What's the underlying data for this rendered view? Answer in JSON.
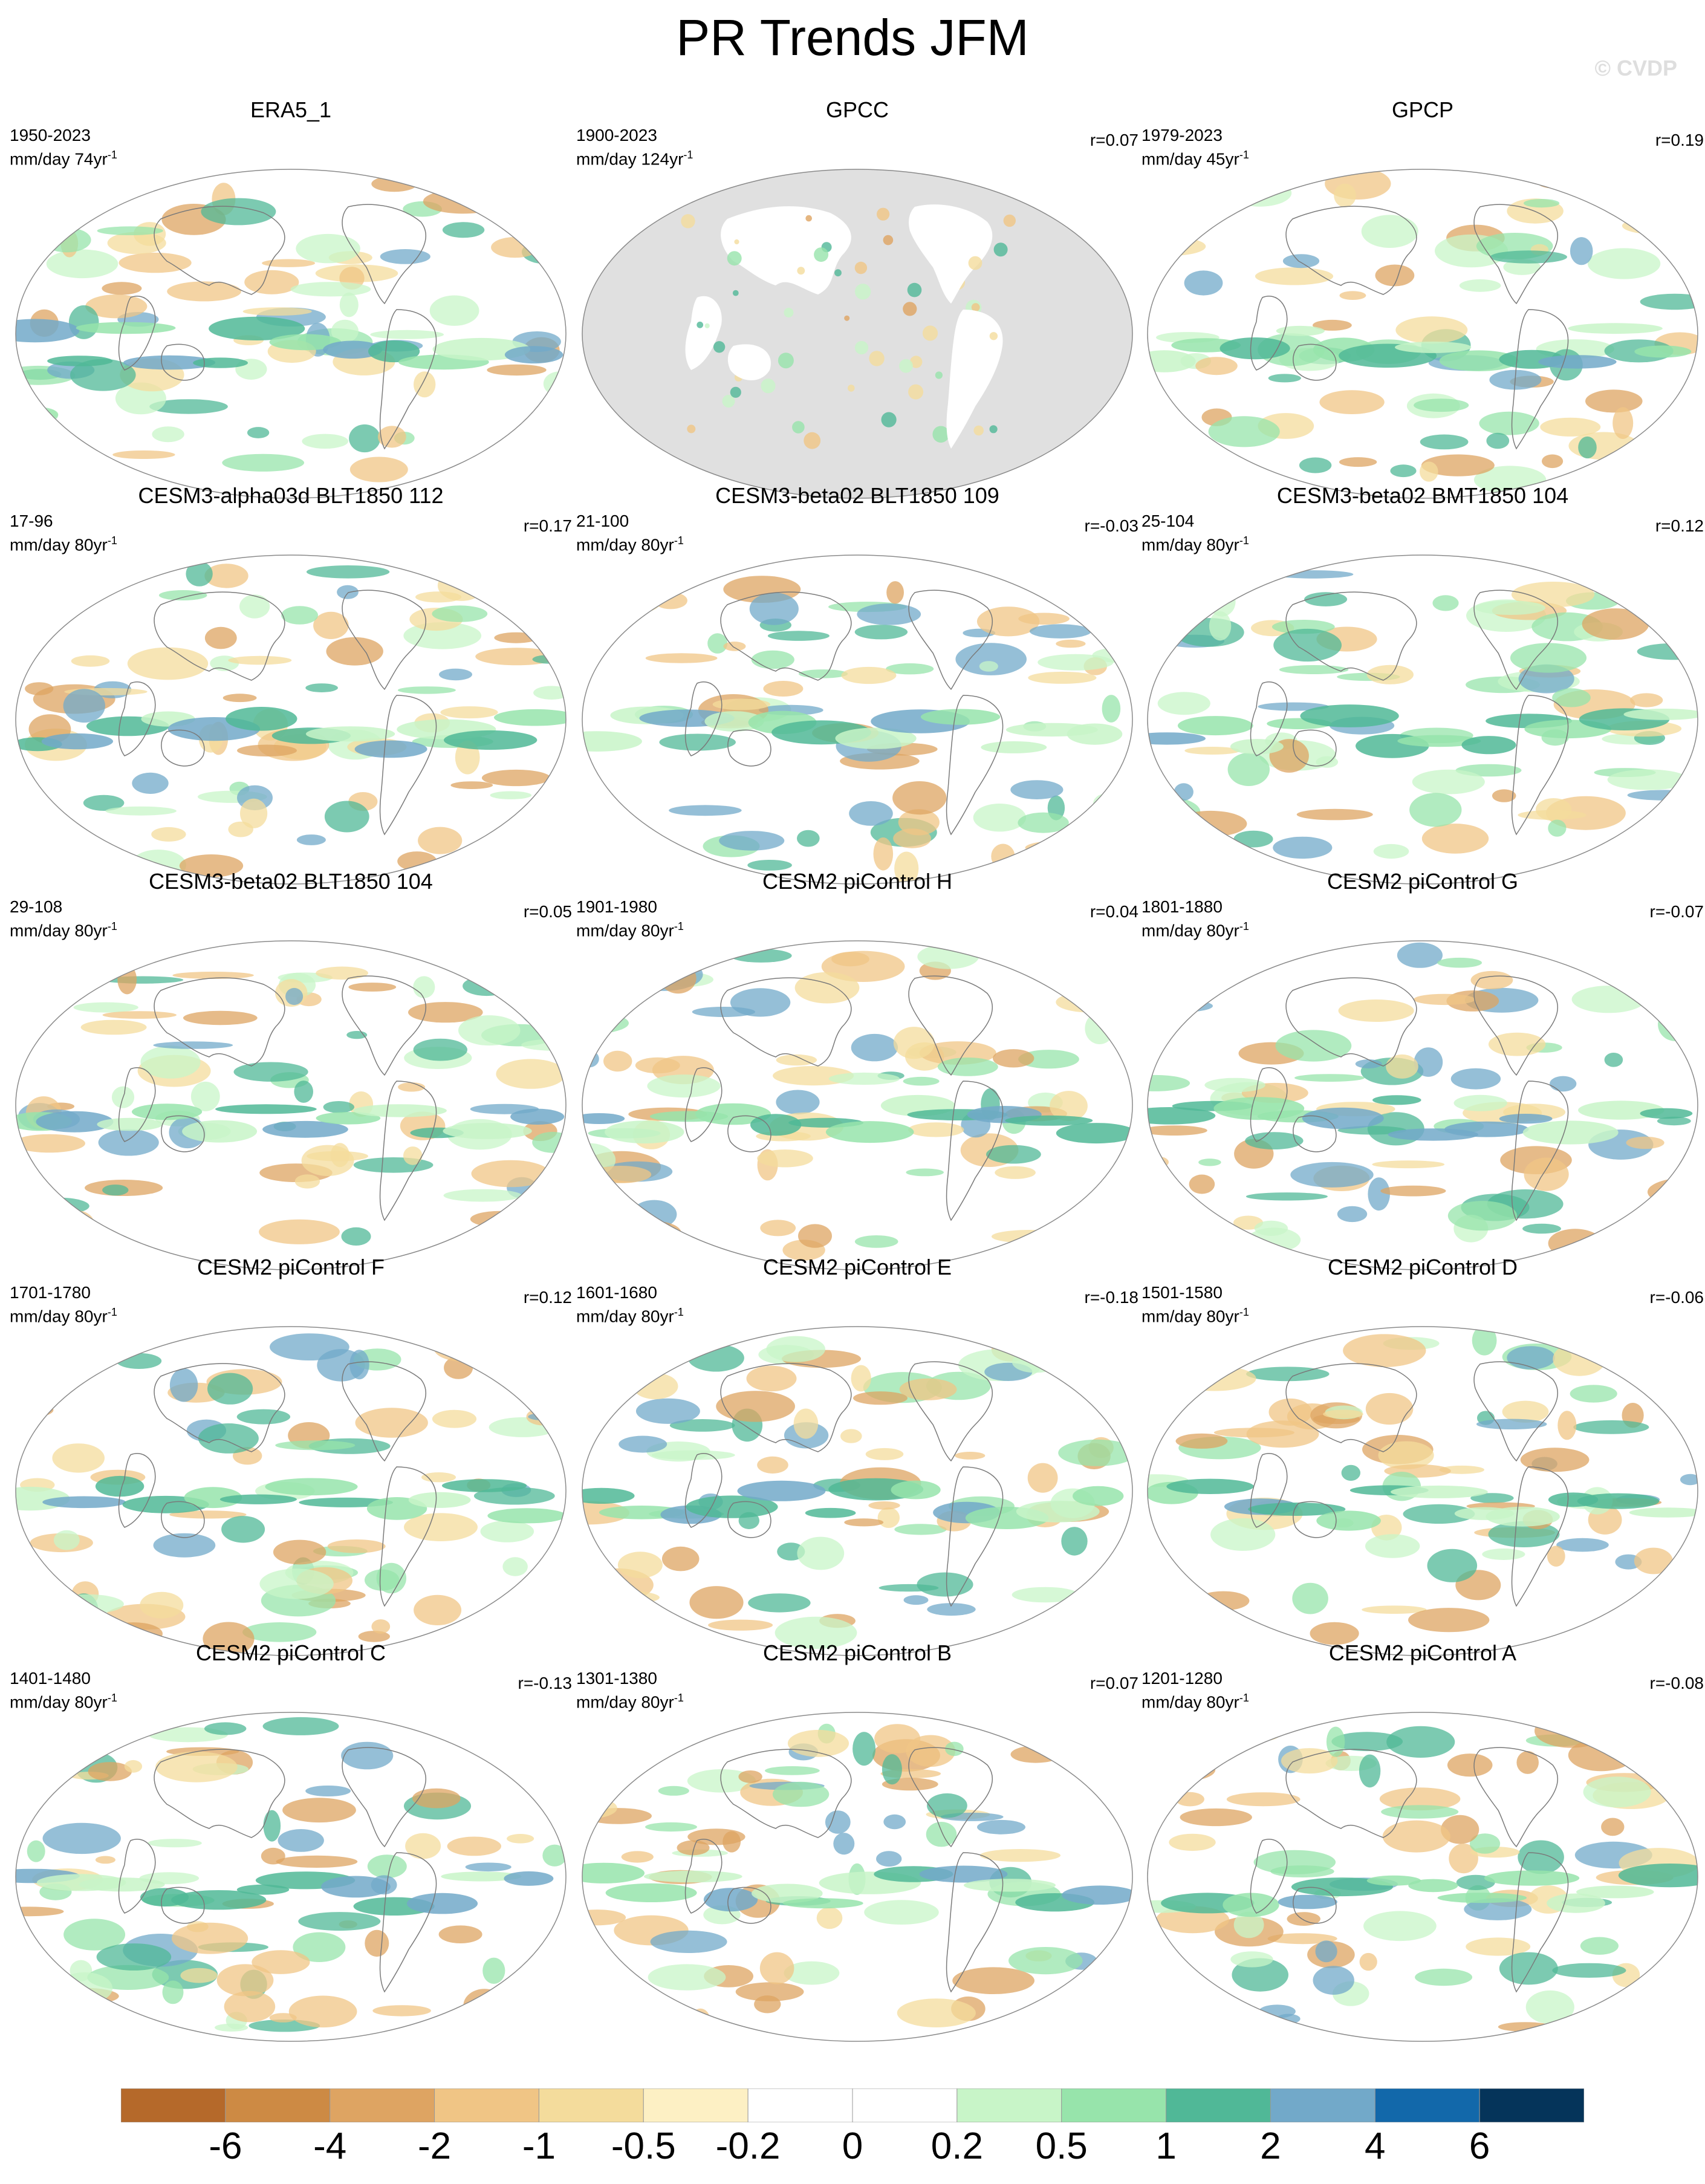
{
  "title": "PR Trends JFM",
  "watermark": "© CVDP",
  "panels": [
    {
      "title": "ERA5_1",
      "period": "1950-2023",
      "units": "mm/day 74yr",
      "r": ""
    },
    {
      "title": "GPCC",
      "period": "1900-2023",
      "units": "mm/day 124yr",
      "r": "r=0.07"
    },
    {
      "title": "GPCP",
      "period": "1979-2023",
      "units": "mm/day 45yr",
      "r": "r=0.19"
    },
    {
      "title": "CESM3-alpha03d BLT1850 112",
      "period": "17-96",
      "units": "mm/day 80yr",
      "r": "r=0.17"
    },
    {
      "title": "CESM3-beta02 BLT1850 109",
      "period": "21-100",
      "units": "mm/day 80yr",
      "r": "r=-0.03"
    },
    {
      "title": "CESM3-beta02 BMT1850 104",
      "period": "25-104",
      "units": "mm/day 80yr",
      "r": "r=0.12"
    },
    {
      "title": "CESM3-beta02 BLT1850 104",
      "period": "29-108",
      "units": "mm/day 80yr",
      "r": "r=0.05"
    },
    {
      "title": "CESM2 piControl H",
      "period": "1901-1980",
      "units": "mm/day 80yr",
      "r": "r=0.04"
    },
    {
      "title": "CESM2 piControl G",
      "period": "1801-1880",
      "units": "mm/day 80yr",
      "r": "r=-0.07"
    },
    {
      "title": "CESM2 piControl F",
      "period": "1701-1780",
      "units": "mm/day 80yr",
      "r": "r=0.12"
    },
    {
      "title": "CESM2 piControl E",
      "period": "1601-1680",
      "units": "mm/day 80yr",
      "r": "r=-0.18"
    },
    {
      "title": "CESM2 piControl D",
      "period": "1501-1580",
      "units": "mm/day 80yr",
      "r": "r=-0.06"
    },
    {
      "title": "CESM2 piControl C",
      "period": "1401-1480",
      "units": "mm/day 80yr",
      "r": "r=-0.13"
    },
    {
      "title": "CESM2 piControl B",
      "period": "1301-1380",
      "units": "mm/day 80yr",
      "r": "r=0.07"
    },
    {
      "title": "CESM2 piControl A",
      "period": "1201-1280",
      "units": "mm/day 80yr",
      "r": "r=-0.08"
    }
  ],
  "colorbar": {
    "colors": [
      "#b5692a",
      "#cd8a44",
      "#dea462",
      "#f0c585",
      "#f4dc9c",
      "#fdf0c4",
      "#ffffff",
      "#ffffff",
      "#c8f5c8",
      "#97e4ab",
      "#50b897",
      "#72a9c9",
      "#1268aa",
      "#05345a"
    ],
    "labels": [
      "-6",
      "-4",
      "-2",
      "-1",
      "-0.5",
      "-0.2",
      "0",
      "0.2",
      "0.5",
      "1",
      "2",
      "4",
      "6"
    ]
  }
}
